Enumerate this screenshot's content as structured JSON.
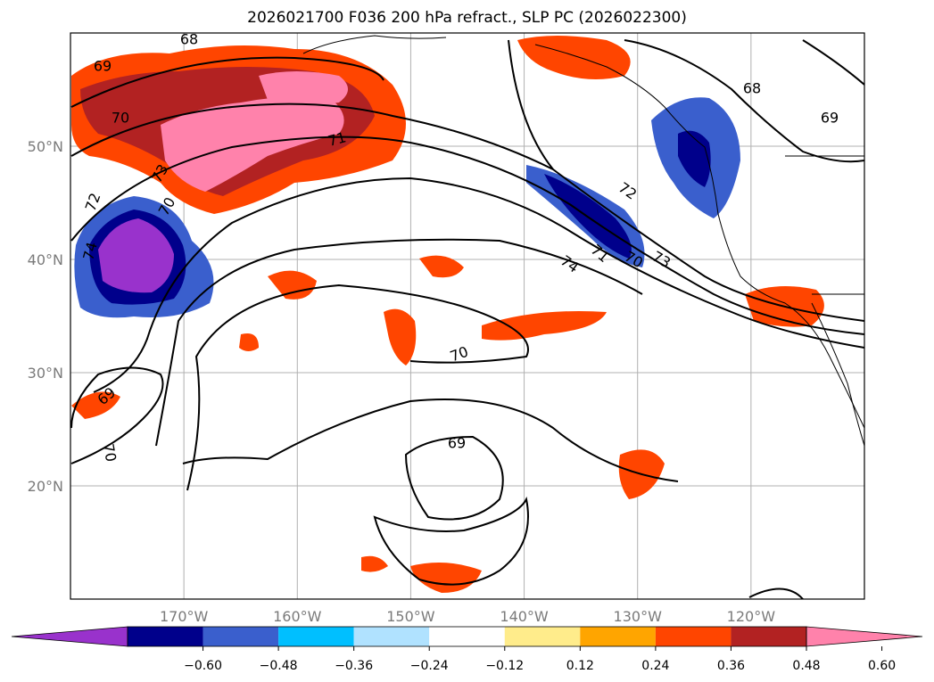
{
  "title": "2026021700 F036 200 hPa refract., SLP PC (2026022300)",
  "map": {
    "lat_ticks": [
      {
        "label": "50°N",
        "value": 50
      },
      {
        "label": "40°N",
        "value": 40
      },
      {
        "label": "30°N",
        "value": 30
      },
      {
        "label": "20°N",
        "value": 20
      }
    ],
    "lon_ticks": [
      {
        "label": "170°W",
        "value": -170
      },
      {
        "label": "160°W",
        "value": -160
      },
      {
        "label": "150°W",
        "value": -150
      },
      {
        "label": "140°W",
        "value": -140
      },
      {
        "label": "130°W",
        "value": -130
      },
      {
        "label": "120°W",
        "value": -120
      }
    ],
    "extent": {
      "lon_min": -180,
      "lon_max": -110,
      "lat_min": 10,
      "lat_max": 60
    },
    "contour_labels": [
      "68",
      "69",
      "70",
      "71",
      "72",
      "73",
      "74",
      "70",
      "69",
      "70",
      "71",
      "72",
      "73",
      "74",
      "70",
      "68",
      "69",
      "69",
      "70"
    ]
  },
  "colorbar": {
    "colors": [
      "#9932cc",
      "#00008b",
      "#3a5fcd",
      "#00bfff",
      "#b0e2ff",
      "#ffffff",
      "#ffec8b",
      "#ffa500",
      "#ff4500",
      "#b22222",
      "#ff82ab"
    ],
    "tick_labels": [
      "−0.60",
      "−0.48",
      "−0.36",
      "−0.24",
      "−0.12",
      "0.12",
      "0.24",
      "0.36",
      "0.48",
      "0.60"
    ]
  }
}
